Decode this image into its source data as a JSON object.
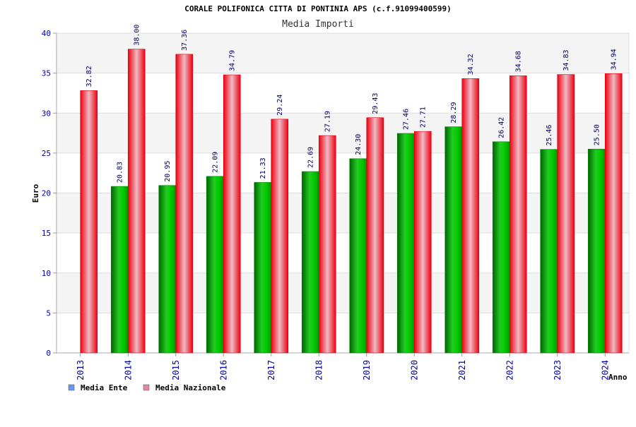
{
  "chart_data": {
    "type": "bar",
    "title": "CORALE POLIFONICA CITTA DI PONTINIA APS (c.f.91099400599)",
    "subtitle": "Media Importi",
    "xlabel": "Anno",
    "ylabel": "Euro",
    "ylim": [
      0,
      40
    ],
    "yticks": [
      "0",
      "5",
      "10",
      "15",
      "20",
      "25",
      "30",
      "35",
      "40"
    ],
    "grid": true,
    "legend_position": "bottom-left",
    "categories": [
      "2013",
      "2014",
      "2015",
      "2016",
      "2017",
      "2018",
      "2019",
      "2020",
      "2021",
      "2022",
      "2023",
      "2024"
    ],
    "series": [
      {
        "name": "Media Ente",
        "legend_color": "#6699ee",
        "bar_color": "#00aa00",
        "values": [
          null,
          20.83,
          20.95,
          22.09,
          21.33,
          22.69,
          24.3,
          27.46,
          28.29,
          26.42,
          25.46,
          25.5
        ],
        "labels": [
          "",
          "20.83",
          "20.95",
          "22.09",
          "21.33",
          "22.69",
          "24.30",
          "27.46",
          "28.29",
          "26.42",
          "25.46",
          "25.50"
        ]
      },
      {
        "name": "Media Nazionale",
        "legend_color": "#dd88aa",
        "bar_color": "#ee1122",
        "values": [
          32.82,
          38.0,
          37.36,
          34.79,
          29.24,
          27.19,
          29.43,
          27.71,
          34.32,
          34.68,
          34.83,
          34.94
        ],
        "labels": [
          "32.82",
          "38.00",
          "37.36",
          "34.79",
          "29.24",
          "27.19",
          "29.43",
          "27.71",
          "34.32",
          "34.68",
          "34.83",
          "34.94"
        ]
      }
    ]
  }
}
